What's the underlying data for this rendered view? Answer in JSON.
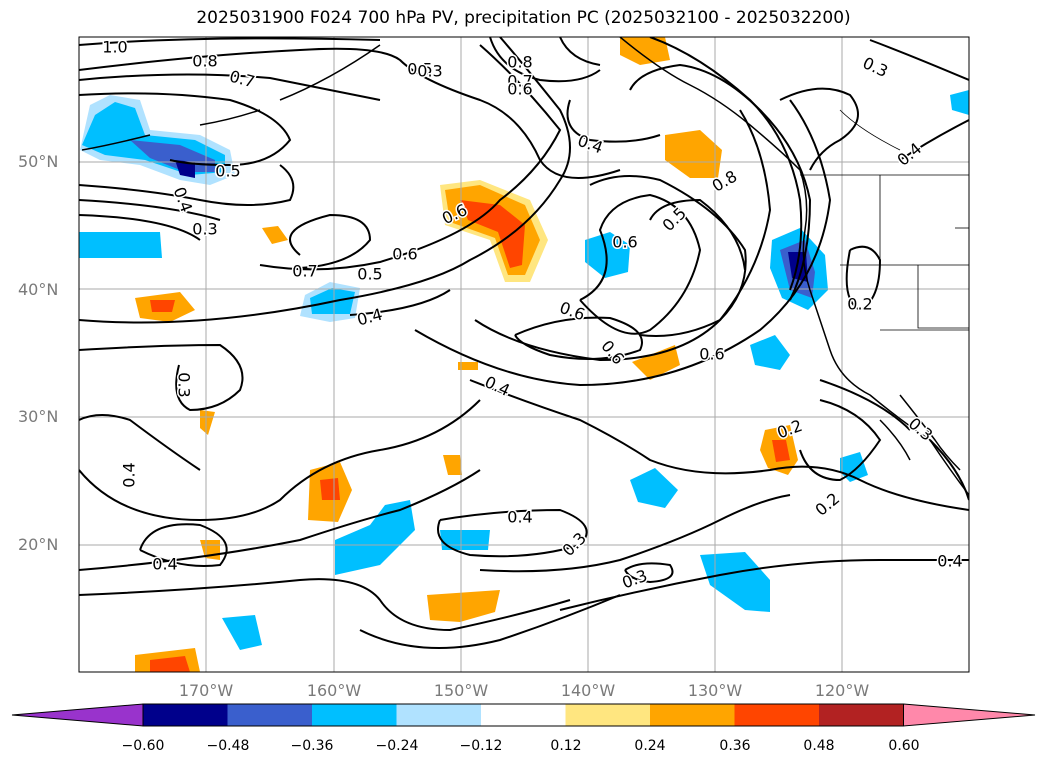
{
  "title": "2025031900 F024 700 hPa PV, precipitation PC (2025032100 - 2025032200)",
  "lat_labels": [
    "50°N",
    "40°N",
    "30°N",
    "20°N"
  ],
  "lon_labels": [
    "170°W",
    "160°W",
    "150°W",
    "140°W",
    "130°W",
    "120°W"
  ],
  "colorbar": {
    "ticks": [
      "−0.60",
      "−0.48",
      "−0.36",
      "−0.24",
      "−0.12",
      "0.12",
      "0.24",
      "0.36",
      "0.48",
      "0.60"
    ],
    "colors": [
      "#9933cc",
      "#00008b",
      "#3a5fcd",
      "#00bfff",
      "#b0e2ff",
      "#ffffff",
      "#ffe680",
      "#ffa500",
      "#ff4500",
      "#b22222",
      "#ff88aa"
    ]
  },
  "contour_labels": [
    "1.0",
    "0.8",
    "0.7",
    "0.5",
    "0.8",
    "0.7",
    "0.6",
    "0.3",
    "0.4",
    "0.5",
    "0.6",
    "0.4",
    "0.8",
    "0.6",
    "0.5",
    "0.7",
    "0.5",
    "0.6",
    "0.4",
    "0.6",
    "0.6",
    "0.6",
    "0.4",
    "0.4",
    "0.2",
    "0.3",
    "0.2",
    "0.2",
    "0.4",
    "0.4",
    "0.3",
    "0.4",
    "0.3",
    "0.3",
    "0.3",
    "0.4",
    "0.3"
  ],
  "colors": {
    "blue_light": "#b0e2ff",
    "blue": "#00bfff",
    "blue_mid": "#3a5fcd",
    "navy": "#00008b",
    "yellow": "#ffe680",
    "orange": "#ffa500",
    "red": "#ff4500",
    "gridline": "#aaaaaa"
  }
}
